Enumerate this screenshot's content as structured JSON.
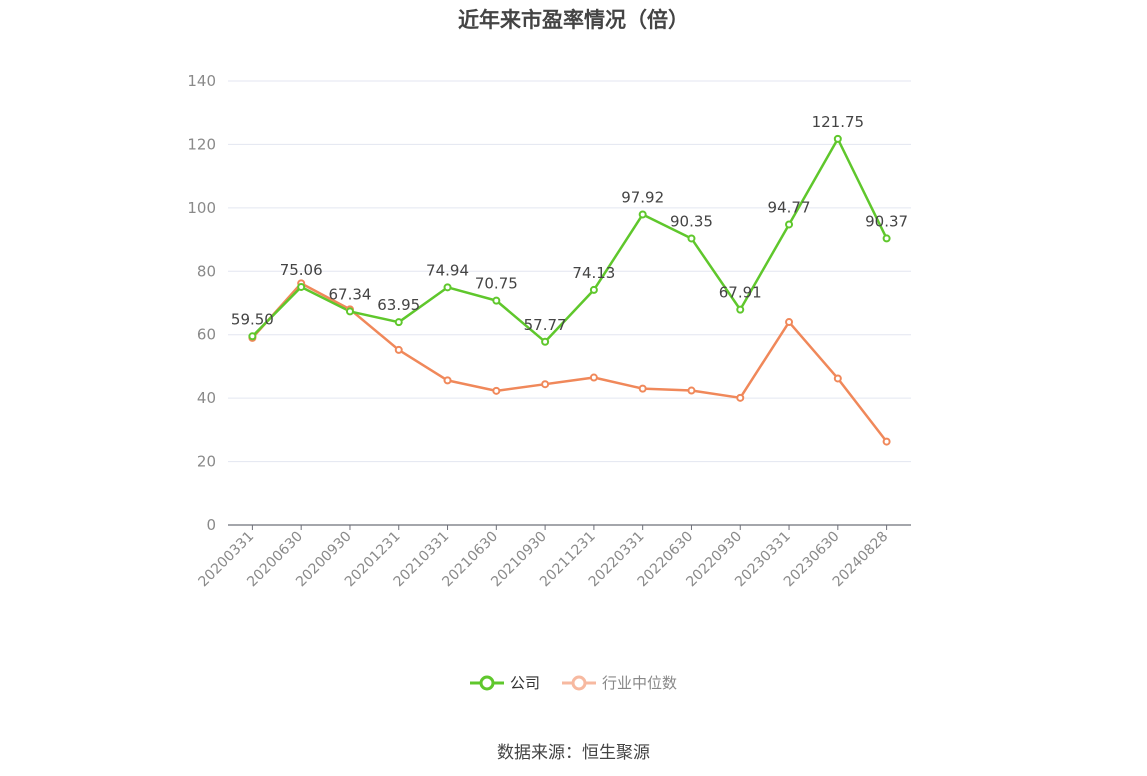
{
  "chart_data": {
    "type": "line",
    "title": "近年来市盈率情况（倍）",
    "categories": [
      "20200331",
      "20200630",
      "20200930",
      "20201231",
      "20210331",
      "20210630",
      "20210930",
      "20211231",
      "20220331",
      "20220630",
      "20220930",
      "20230331",
      "20230630",
      "20240828"
    ],
    "series": [
      {
        "name": "公司",
        "color": "#5fc72c",
        "values": [
          59.5,
          75.06,
          67.34,
          63.95,
          74.94,
          70.75,
          57.77,
          74.13,
          97.92,
          90.35,
          67.91,
          94.77,
          121.75,
          90.37
        ],
        "labels": [
          "59.50",
          "75.06",
          "67.34",
          "63.95",
          "74.94",
          "70.75",
          "57.77",
          "74.13",
          "97.92",
          "90.35",
          "67.91",
          "94.77",
          "121.75",
          "90.37"
        ]
      },
      {
        "name": "行业中位数",
        "color": "#f0885a",
        "values": [
          59.0,
          76.2,
          68.0,
          55.2,
          45.6,
          42.3,
          44.4,
          46.5,
          43.0,
          42.4,
          40.1,
          64.0,
          46.2,
          26.3
        ]
      }
    ],
    "ylim": [
      0,
      140
    ],
    "yticks": [
      "0",
      "20",
      "40",
      "60",
      "80",
      "100",
      "120",
      "140"
    ],
    "grid": true,
    "legend_position": "bottom-center"
  },
  "legend": {
    "company": "公司",
    "industry": "行业中位数"
  },
  "source": "数据来源：恒生聚源"
}
